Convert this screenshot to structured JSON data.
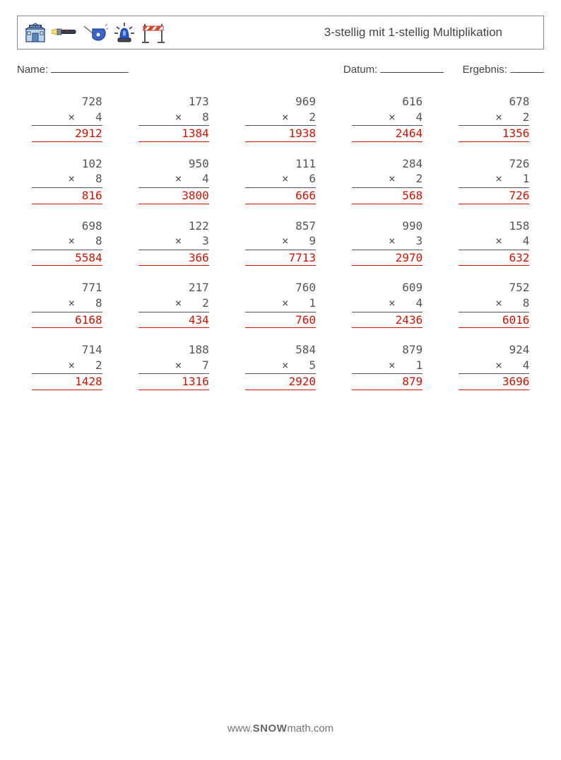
{
  "header": {
    "title": "3-stellig mit 1-stellig Multiplikation",
    "icons": [
      "police-building-icon",
      "flashlight-icon",
      "whistle-icon",
      "siren-icon",
      "barrier-icon"
    ]
  },
  "form": {
    "name_label": "Name:",
    "date_label": "Datum:",
    "result_label": "Ergebnis:",
    "name_underline_width": 110,
    "date_underline_width": 90,
    "result_underline_width": 48
  },
  "style": {
    "text_color": "#555555",
    "answer_color": "#d11200",
    "border_color": "#888888",
    "mono_font": "DejaVu Sans Mono",
    "font_size_problem": 16,
    "columns": 5,
    "rows": 5
  },
  "problems": [
    {
      "a": 728,
      "b": 4,
      "ans": 2912
    },
    {
      "a": 173,
      "b": 8,
      "ans": 1384
    },
    {
      "a": 969,
      "b": 2,
      "ans": 1938
    },
    {
      "a": 616,
      "b": 4,
      "ans": 2464
    },
    {
      "a": 678,
      "b": 2,
      "ans": 1356
    },
    {
      "a": 102,
      "b": 8,
      "ans": 816
    },
    {
      "a": 950,
      "b": 4,
      "ans": 3800
    },
    {
      "a": 111,
      "b": 6,
      "ans": 666
    },
    {
      "a": 284,
      "b": 2,
      "ans": 568
    },
    {
      "a": 726,
      "b": 1,
      "ans": 726
    },
    {
      "a": 698,
      "b": 8,
      "ans": 5584
    },
    {
      "a": 122,
      "b": 3,
      "ans": 366
    },
    {
      "a": 857,
      "b": 9,
      "ans": 7713
    },
    {
      "a": 990,
      "b": 3,
      "ans": 2970
    },
    {
      "a": 158,
      "b": 4,
      "ans": 632
    },
    {
      "a": 771,
      "b": 8,
      "ans": 6168
    },
    {
      "a": 217,
      "b": 2,
      "ans": 434
    },
    {
      "a": 760,
      "b": 1,
      "ans": 760
    },
    {
      "a": 609,
      "b": 4,
      "ans": 2436
    },
    {
      "a": 752,
      "b": 8,
      "ans": 6016
    },
    {
      "a": 714,
      "b": 2,
      "ans": 1428
    },
    {
      "a": 188,
      "b": 7,
      "ans": 1316
    },
    {
      "a": 584,
      "b": 5,
      "ans": 2920
    },
    {
      "a": 879,
      "b": 1,
      "ans": 879
    },
    {
      "a": 924,
      "b": 4,
      "ans": 3696
    }
  ],
  "watermark": {
    "prefix": "www.",
    "bold": "SNOW",
    "suffix": "math.com"
  }
}
